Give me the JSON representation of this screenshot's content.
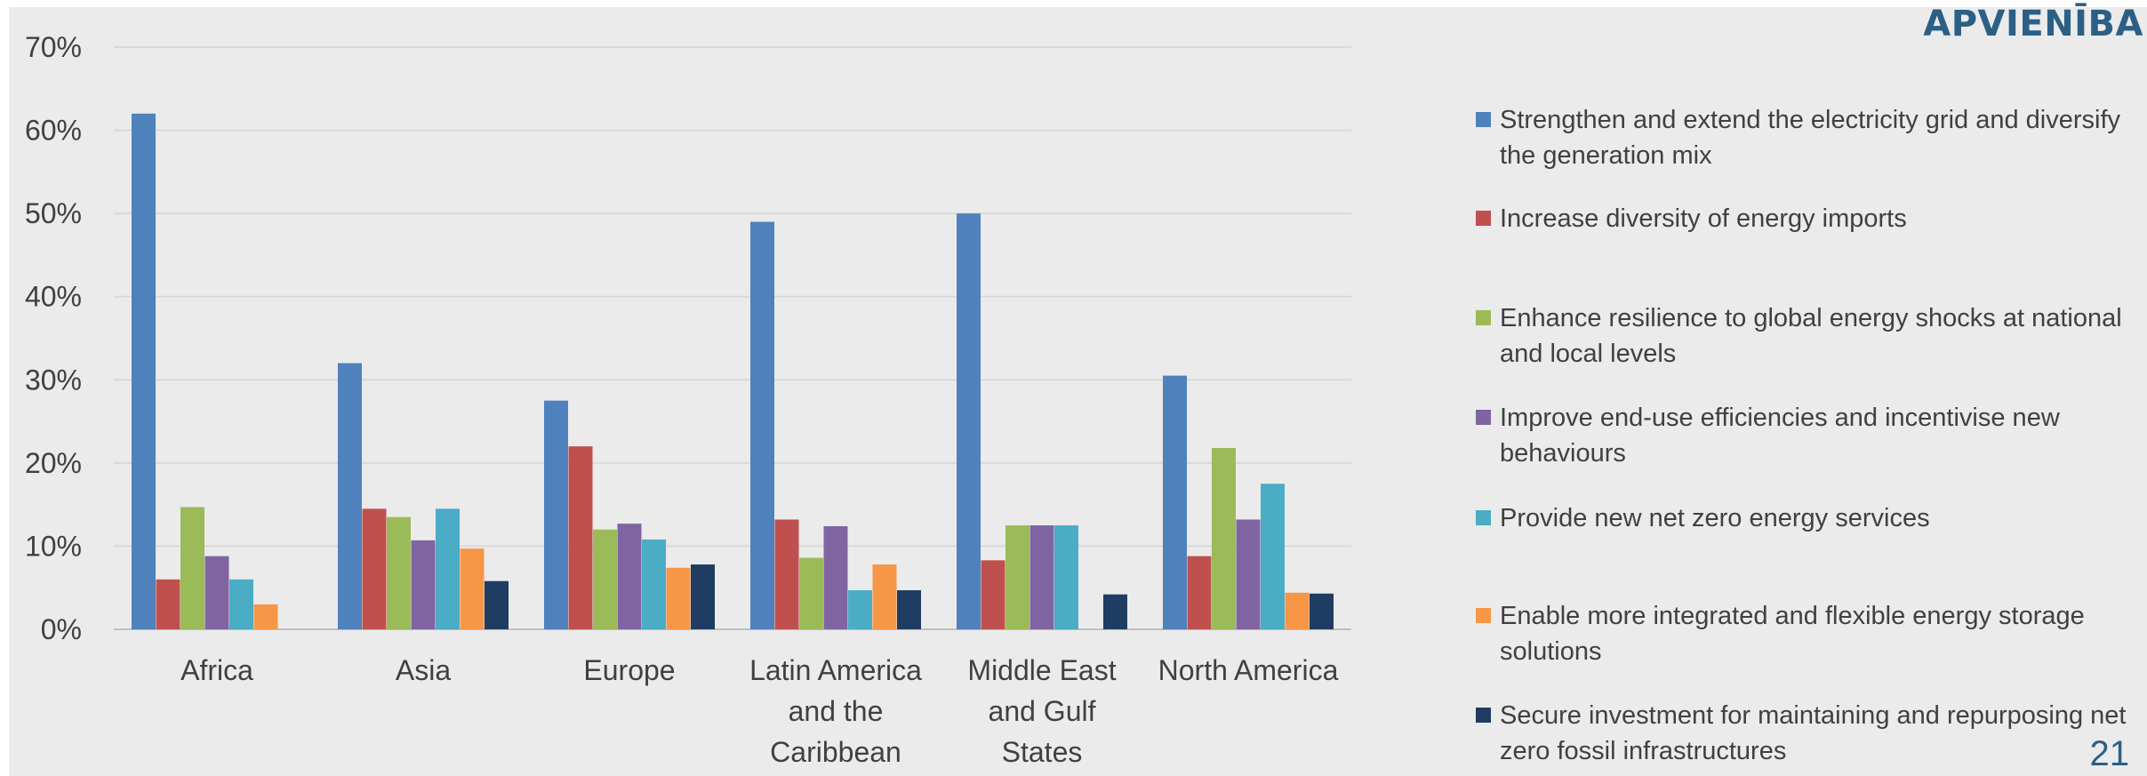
{
  "brand": "APVIENĪBA",
  "page_number": "21",
  "colors": [
    "#4f81bd",
    "#c0504d",
    "#9bbb59",
    "#8064a2",
    "#4bacc6",
    "#f79646",
    "#1f3d63"
  ],
  "chart_data": {
    "type": "bar",
    "categories": [
      [
        "Africa"
      ],
      [
        "Asia"
      ],
      [
        "Europe"
      ],
      [
        "Latin America",
        "and the",
        "Caribbean"
      ],
      [
        "Middle East",
        "and Gulf",
        "States"
      ],
      [
        "North America"
      ]
    ],
    "yticks": [
      "0%",
      "10%",
      "20%",
      "30%",
      "40%",
      "50%",
      "60%",
      "70%"
    ],
    "ylim": [
      0,
      70
    ],
    "grid": true,
    "legend_position": "right",
    "series": [
      {
        "name": "Strengthen and extend the electricity grid and diversify the generation mix",
        "values": [
          62,
          32,
          27.5,
          49,
          50,
          30.5
        ]
      },
      {
        "name": "Increase diversity of energy imports",
        "values": [
          6,
          14.5,
          22,
          13.2,
          8.3,
          8.8
        ]
      },
      {
        "name": "Enhance resilience to global energy shocks at national and local levels",
        "values": [
          14.7,
          13.5,
          12,
          8.6,
          12.5,
          21.8
        ]
      },
      {
        "name": "Improve end-use efficiencies and incentivise new behaviours",
        "values": [
          8.8,
          10.7,
          12.7,
          12.4,
          12.5,
          13.2
        ]
      },
      {
        "name": "Provide new net zero energy services",
        "values": [
          6,
          14.5,
          10.8,
          4.7,
          12.5,
          17.5
        ]
      },
      {
        "name": "Enable more integrated and flexible energy storage solutions",
        "values": [
          3,
          9.7,
          7.4,
          7.8,
          0,
          4.4
        ]
      },
      {
        "name": "Secure investment for maintaining and repurposing net zero fossil infrastructures",
        "values": [
          0,
          5.8,
          7.8,
          4.7,
          4.2,
          4.3
        ]
      }
    ]
  }
}
